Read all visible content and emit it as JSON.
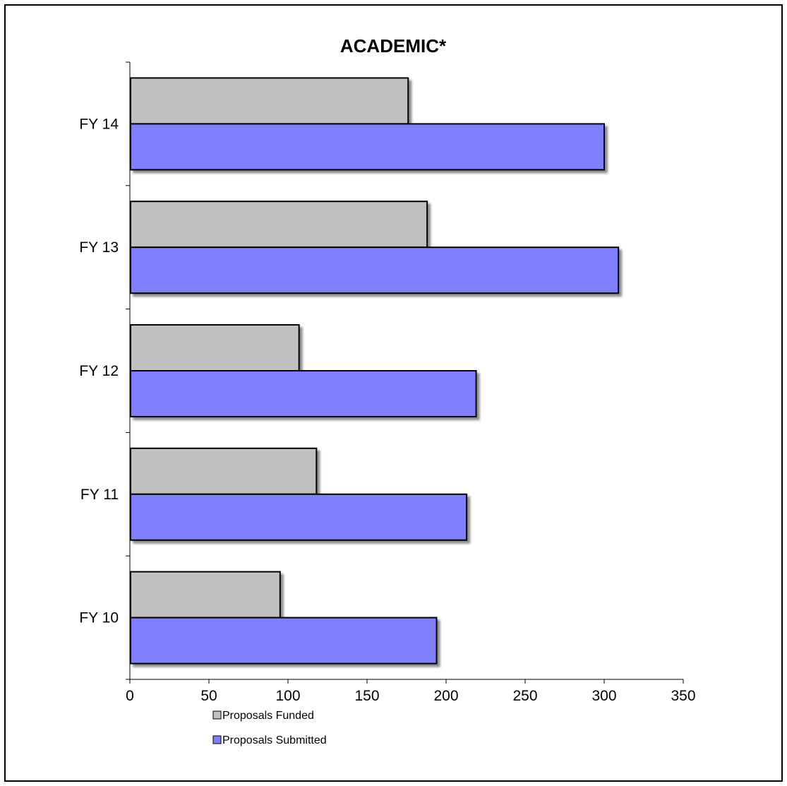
{
  "chart_data": {
    "type": "bar",
    "orientation": "horizontal",
    "title": "ACADEMIC*",
    "categories": [
      "FY 10",
      "FY 11",
      "FY 12",
      "FY 13",
      "FY 14"
    ],
    "series": [
      {
        "name": "Proposals Funded",
        "color": "#c0c0c0",
        "values": [
          95,
          118,
          107,
          188,
          176
        ]
      },
      {
        "name": "Proposals Submitted",
        "color": "#8080ff",
        "values": [
          194,
          213,
          219,
          309,
          300
        ]
      }
    ],
    "xlim": [
      0,
      350
    ],
    "xticks": [
      "0",
      "50",
      "100",
      "150",
      "200",
      "250",
      "300",
      "350"
    ],
    "xlabel": "",
    "ylabel": "",
    "grid": false,
    "legend_position": "bottom-left"
  }
}
